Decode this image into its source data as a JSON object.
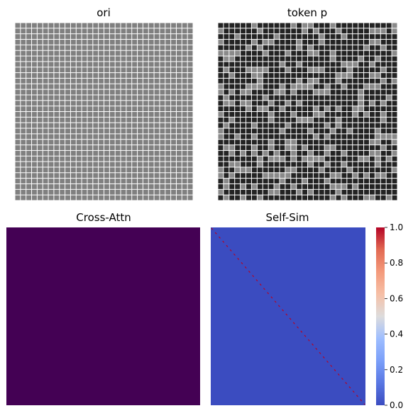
{
  "chart_data": [
    {
      "type": "heatmap",
      "title": "ori",
      "colormap": "gray",
      "grid_lines": true,
      "grid_color": "#ffffff",
      "rows": 32,
      "cols": 32,
      "cell_colors": [
        "#808080"
      ],
      "description_values": "uniform gray cells"
    },
    {
      "type": "heatmap",
      "title": "token p",
      "colormap": "gray",
      "grid_lines": true,
      "grid_color": "#ffffff",
      "rows": 32,
      "cols": 32,
      "cell_colors": [
        "#232323",
        "#8a8a8a"
      ]
    },
    {
      "type": "heatmap",
      "title": "Cross-Attn",
      "colormap": "viridis",
      "grid_lines": false,
      "fill_color": "#440154"
    },
    {
      "type": "heatmap",
      "title": "Self-Sim",
      "colormap": "coolwarm",
      "grid_lines": false,
      "fill_color": "#3b4cc0",
      "diagonal_color": "#b40426",
      "colorbar": {
        "ticks": [
          "0.0",
          "0.2",
          "0.4",
          "0.6",
          "0.8",
          "1.0"
        ],
        "tick_values": [
          0.0,
          0.2,
          0.4,
          0.6,
          0.8,
          1.0
        ],
        "range": [
          0,
          1
        ]
      }
    }
  ]
}
